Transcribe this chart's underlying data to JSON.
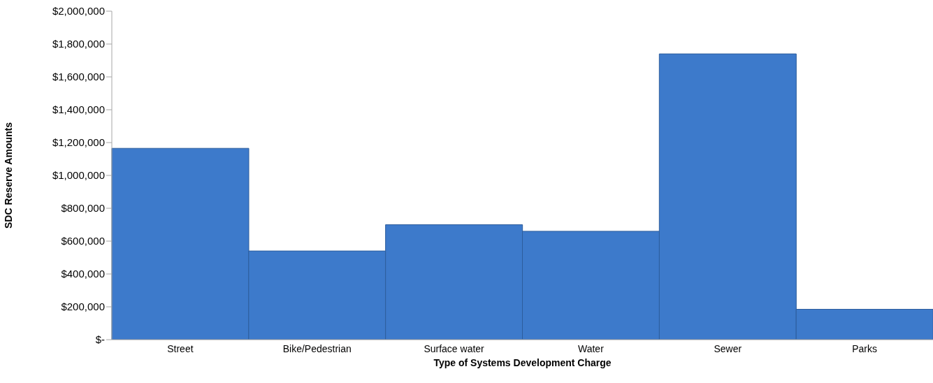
{
  "chart_data": {
    "type": "bar",
    "xlabel": "Type of Systems Development Charge",
    "ylabel": "SDC Reserve Amounts",
    "categories": [
      "Street",
      "Bike/Pedestrian",
      "Surface water",
      "Water",
      "Sewer",
      "Parks"
    ],
    "values": [
      1165000,
      540000,
      700000,
      660000,
      1740000,
      185000
    ],
    "color": "#3d7acb",
    "ylim": [
      0,
      2000000
    ],
    "yticks": [
      {
        "value": 0,
        "label": "$-"
      },
      {
        "value": 200000,
        "label": "$200,000"
      },
      {
        "value": 400000,
        "label": "$400,000"
      },
      {
        "value": 600000,
        "label": "$600,000"
      },
      {
        "value": 800000,
        "label": "$800,000"
      },
      {
        "value": 1000000,
        "label": "$1,000,000"
      },
      {
        "value": 1200000,
        "label": "$1,200,000"
      },
      {
        "value": 1400000,
        "label": "$1,400,000"
      },
      {
        "value": 1600000,
        "label": "$1,600,000"
      },
      {
        "value": 1800000,
        "label": "$1,800,000"
      },
      {
        "value": 2000000,
        "label": "$2,000,000"
      }
    ],
    "grid": false,
    "legend": false
  }
}
